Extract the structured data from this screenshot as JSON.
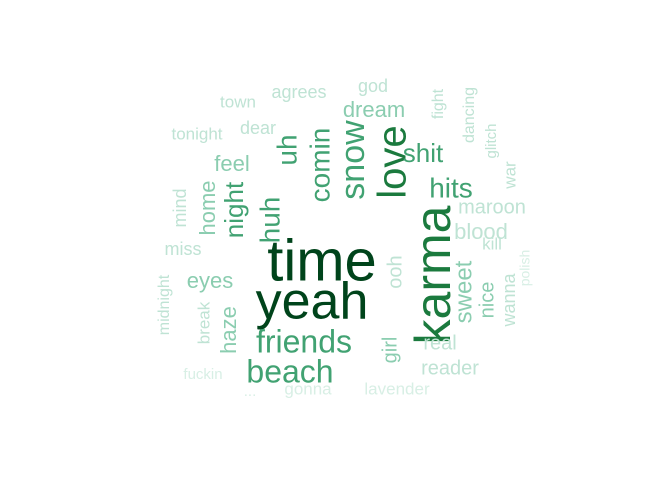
{
  "colors": {
    "darkest": "#00441b",
    "dark": "#1b7a3e",
    "medium": "#41a272",
    "light": "#8bcdb0",
    "lighter": "#bfe3d4",
    "faint": "#d8efe5"
  },
  "words": [
    {
      "id": "time",
      "text": "time",
      "color": "darkest"
    },
    {
      "id": "yeah",
      "text": "yeah",
      "color": "darkest"
    },
    {
      "id": "karma",
      "text": "karma",
      "color": "dark"
    },
    {
      "id": "love",
      "text": "love",
      "color": "dark"
    },
    {
      "id": "snow",
      "text": "snow",
      "color": "medium"
    },
    {
      "id": "comin",
      "text": "comin",
      "color": "medium"
    },
    {
      "id": "uh",
      "text": "uh",
      "color": "medium"
    },
    {
      "id": "huh",
      "text": "huh",
      "color": "medium"
    },
    {
      "id": "night",
      "text": "night",
      "color": "medium"
    },
    {
      "id": "friends",
      "text": "friends",
      "color": "medium"
    },
    {
      "id": "beach",
      "text": "beach",
      "color": "medium"
    },
    {
      "id": "hits",
      "text": "hits",
      "color": "medium"
    },
    {
      "id": "shit",
      "text": "shit",
      "color": "medium"
    },
    {
      "id": "sweet",
      "text": "sweet",
      "color": "light"
    },
    {
      "id": "dream",
      "text": "dream",
      "color": "light"
    },
    {
      "id": "feel",
      "text": "feel",
      "color": "light"
    },
    {
      "id": "home",
      "text": "home",
      "color": "light"
    },
    {
      "id": "eyes",
      "text": "eyes",
      "color": "light"
    },
    {
      "id": "haze",
      "text": "haze",
      "color": "light"
    },
    {
      "id": "girl",
      "text": "girl",
      "color": "light"
    },
    {
      "id": "nice",
      "text": "nice",
      "color": "light"
    },
    {
      "id": "blood",
      "text": "blood",
      "color": "lighter"
    },
    {
      "id": "maroon",
      "text": "maroon",
      "color": "lighter"
    },
    {
      "id": "ooh",
      "text": "ooh",
      "color": "lighter"
    },
    {
      "id": "wanna",
      "text": "wanna",
      "color": "lighter"
    },
    {
      "id": "real",
      "text": "real",
      "color": "lighter"
    },
    {
      "id": "reader",
      "text": "reader",
      "color": "lighter"
    },
    {
      "id": "dear",
      "text": "dear",
      "color": "lighter"
    },
    {
      "id": "miss",
      "text": "miss",
      "color": "lighter"
    },
    {
      "id": "mind",
      "text": "mind",
      "color": "lighter"
    },
    {
      "id": "break",
      "text": "break",
      "color": "lighter"
    },
    {
      "id": "town",
      "text": "town",
      "color": "lighter"
    },
    {
      "id": "agrees",
      "text": "agrees",
      "color": "lighter"
    },
    {
      "id": "god",
      "text": "god",
      "color": "lighter"
    },
    {
      "id": "tonight",
      "text": "tonight",
      "color": "lighter"
    },
    {
      "id": "fight",
      "text": "fight",
      "color": "lighter"
    },
    {
      "id": "dancing",
      "text": "dancing",
      "color": "lighter"
    },
    {
      "id": "glitch",
      "text": "glitch",
      "color": "lighter"
    },
    {
      "id": "war",
      "text": "war",
      "color": "lighter"
    },
    {
      "id": "kill",
      "text": "kill",
      "color": "lighter"
    },
    {
      "id": "midnight",
      "text": "midnight",
      "color": "lighter"
    },
    {
      "id": "polish",
      "text": "polish",
      "color": "faint"
    },
    {
      "id": "fuckin",
      "text": "fuckin",
      "color": "faint"
    },
    {
      "id": "gonna",
      "text": "gonna",
      "color": "faint"
    },
    {
      "id": "lavender",
      "text": "lavender",
      "color": "faint"
    },
    {
      "id": "partial",
      "text": "...",
      "color": "faint"
    }
  ]
}
